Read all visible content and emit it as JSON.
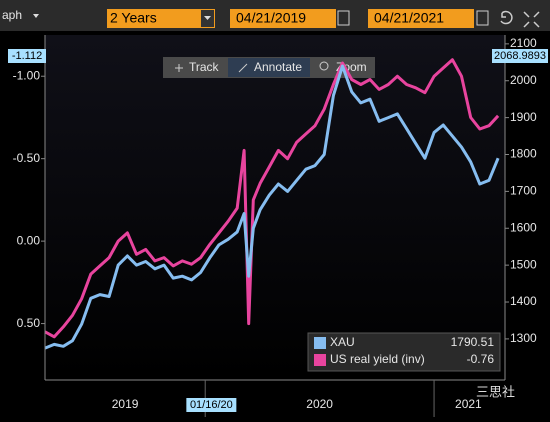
{
  "toolbar": {
    "tab": "aph",
    "period": "2 Years",
    "start": "04/21/2019",
    "end": "04/21/2021",
    "buttons": [
      "Track",
      "Annotate",
      "Zoom"
    ]
  },
  "watermark": "三思社",
  "chart_data": {
    "type": "line",
    "x": [
      2019.3,
      2019.34,
      2019.38,
      2019.42,
      2019.46,
      2019.5,
      2019.54,
      2019.58,
      2019.62,
      2019.66,
      2019.7,
      2019.74,
      2019.78,
      2019.82,
      2019.86,
      2019.9,
      2019.94,
      2019.98,
      2020.02,
      2020.06,
      2020.1,
      2020.14,
      2020.17,
      2020.19,
      2020.21,
      2020.24,
      2020.28,
      2020.32,
      2020.36,
      2020.4,
      2020.44,
      2020.48,
      2020.52,
      2020.56,
      2020.6,
      2020.64,
      2020.68,
      2020.72,
      2020.76,
      2020.8,
      2020.84,
      2020.88,
      2020.92,
      2020.96,
      2021.0,
      2021.04,
      2021.08,
      2021.12,
      2021.16,
      2021.2,
      2021.24,
      2021.28
    ],
    "xlim": [
      2019.3,
      2021.31
    ],
    "xticks": [
      {
        "value": 2019.65,
        "label": "2019"
      },
      {
        "value": 2020.5,
        "label": "2020"
      },
      {
        "value": 2021.15,
        "label": "2021"
      }
    ],
    "xseparators": [
      2020,
      2021
    ],
    "crosshair": {
      "x": 2020.04,
      "label": "01/16/20"
    },
    "ylim": [
      -1.25,
      0.83
    ],
    "y_inverted": true,
    "yticks": [
      {
        "value": -1,
        "label": "-1.00"
      },
      {
        "value": -0.5,
        "label": "-0.50"
      },
      {
        "value": 0,
        "label": "0.00"
      },
      {
        "value": 0.5,
        "label": "0.50"
      }
    ],
    "y_cursor_value": -1.112,
    "y2lim": [
      1194,
      2124
    ],
    "y2ticks": [
      1300,
      1400,
      1500,
      1600,
      1700,
      1800,
      1900,
      2000,
      2100
    ],
    "y2_cursor_value": 2068.9893,
    "series": [
      {
        "name": "US real yield (inv)",
        "color": "#e8449e",
        "axis": "y",
        "last_value": -0.76,
        "values": [
          0.55,
          0.58,
          0.52,
          0.45,
          0.35,
          0.2,
          0.15,
          0.1,
          0.0,
          -0.05,
          0.08,
          0.05,
          0.12,
          0.1,
          0.15,
          0.12,
          0.14,
          0.1,
          0.02,
          -0.05,
          -0.12,
          -0.2,
          -0.55,
          0.5,
          -0.25,
          -0.35,
          -0.45,
          -0.55,
          -0.5,
          -0.6,
          -0.65,
          -0.7,
          -0.8,
          -0.95,
          -1.08,
          -0.98,
          -0.95,
          -0.98,
          -0.92,
          -0.95,
          -1.0,
          -0.95,
          -0.93,
          -0.9,
          -1.0,
          -1.05,
          -1.1,
          -1.0,
          -0.75,
          -0.68,
          -0.7,
          -0.76
        ]
      },
      {
        "name": "XAU",
        "color": "#86bdf0",
        "axis": "y2",
        "last_value": 1790.51,
        "values": [
          1275,
          1285,
          1280,
          1295,
          1340,
          1410,
          1420,
          1415,
          1500,
          1525,
          1500,
          1510,
          1490,
          1500,
          1465,
          1470,
          1460,
          1480,
          1520,
          1555,
          1570,
          1590,
          1640,
          1470,
          1600,
          1650,
          1690,
          1720,
          1700,
          1730,
          1760,
          1770,
          1800,
          1960,
          2040,
          1970,
          1940,
          1950,
          1890,
          1900,
          1910,
          1870,
          1830,
          1790,
          1860,
          1880,
          1850,
          1820,
          1780,
          1720,
          1730,
          1790
        ]
      }
    ]
  }
}
